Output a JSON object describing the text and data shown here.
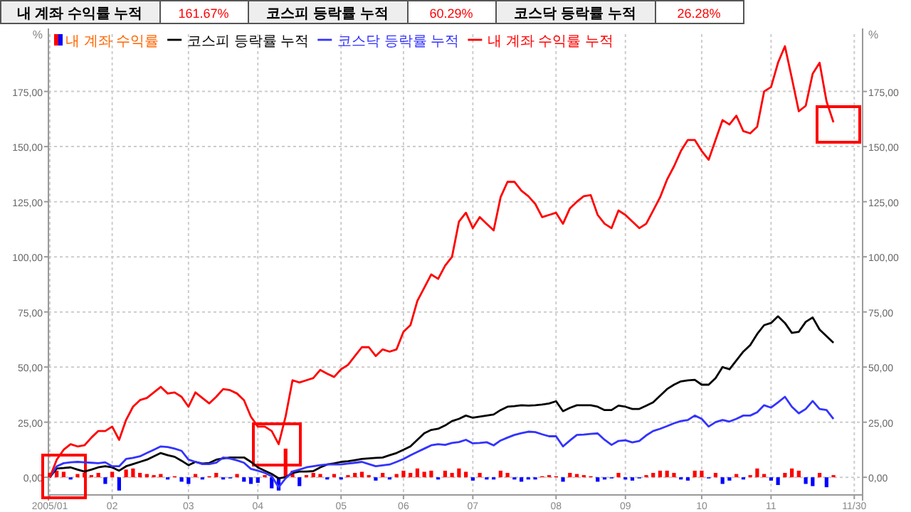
{
  "chart_data": {
    "type": "line",
    "annotations": [
      "내 계좌 수익률 누적",
      "161.67%",
      "코스피 등락률 누적",
      "60.29%",
      "코스닥 등락률 누적",
      "26.28%"
    ],
    "ylabel": "%",
    "y2label": "%",
    "categories": [
      "2005/01",
      null,
      null,
      null,
      null,
      null,
      null,
      null,
      null,
      "02",
      null,
      null,
      null,
      null,
      null,
      null,
      null,
      null,
      null,
      null,
      "03",
      null,
      null,
      null,
      null,
      null,
      null,
      null,
      null,
      null,
      "04",
      null,
      null,
      null,
      null,
      null,
      null,
      null,
      null,
      null,
      null,
      null,
      "05",
      null,
      null,
      null,
      null,
      null,
      null,
      null,
      null,
      "06",
      null,
      null,
      null,
      null,
      null,
      null,
      null,
      null,
      null,
      "07",
      null,
      null,
      null,
      null,
      null,
      null,
      null,
      null,
      null,
      null,
      null,
      "08",
      null,
      null,
      null,
      null,
      null,
      null,
      null,
      null,
      null,
      "09",
      null,
      null,
      null,
      null,
      null,
      null,
      null,
      null,
      null,
      null,
      "10",
      null,
      null,
      null,
      null,
      null,
      null,
      null,
      null,
      null,
      "11",
      null,
      null,
      null,
      null,
      null,
      null,
      null,
      null,
      null,
      null,
      null,
      "11/30",
      null
    ],
    "ylim": [
      -8,
      201
    ],
    "yticks": [
      {
        "value": 0,
        "label": "0,00"
      },
      {
        "value": 25,
        "label": "25,00"
      },
      {
        "value": 50,
        "label": "50,00"
      },
      {
        "value": 75,
        "label": "75,00"
      },
      {
        "value": 100,
        "label": "100,00"
      },
      {
        "value": 125,
        "label": "125,00"
      },
      {
        "value": 150,
        "label": "150,00"
      },
      {
        "value": 175,
        "label": "175,00"
      }
    ],
    "y2lim": [
      -8,
      201
    ],
    "y2ticks": [
      {
        "value": 0,
        "label": "0,00"
      },
      {
        "value": 25,
        "label": "25,00"
      },
      {
        "value": 50,
        "label": "50,00"
      },
      {
        "value": 75,
        "label": "75,00"
      },
      {
        "value": 100,
        "label": "100,00"
      },
      {
        "value": 125,
        "label": "125,00"
      },
      {
        "value": 150,
        "label": "150,00"
      },
      {
        "value": 175,
        "label": "175,00"
      }
    ],
    "grid": true,
    "legend": "top left",
    "series": [
      {
        "name": "내 계좌 수익률",
        "type": "bar",
        "color": "#ff6600",
        "values": [
          2,
          3,
          2.5,
          -1,
          1.5,
          2,
          1,
          2,
          -3,
          2.5,
          -6,
          3.5,
          4,
          2,
          1.5,
          1,
          1.5,
          -1,
          0.5,
          -2,
          -3,
          1.5,
          -1,
          0.5,
          2,
          -1,
          -0.5,
          1.5,
          -2,
          -3,
          -2.5,
          1,
          -5,
          -6,
          13,
          3,
          -4,
          1,
          2,
          1.5,
          -1,
          1.5,
          -1,
          1,
          2,
          2.5,
          1,
          -1.5,
          2,
          -1,
          1.5,
          3,
          2,
          4,
          2.5,
          3,
          -1,
          3,
          2,
          4,
          2.5,
          -1.5,
          2,
          -1,
          -1,
          3,
          2,
          -1,
          -2,
          -1,
          -1,
          0.5,
          1,
          0.5,
          -2,
          2,
          1.5,
          1,
          0.5,
          -2,
          -1,
          -0.5,
          2,
          -1,
          -1.5,
          -0.5,
          1,
          2,
          3,
          3,
          2,
          -1,
          -1.5,
          3,
          3,
          -0.5,
          2,
          -3,
          -1.5,
          1.5,
          -1,
          1,
          4,
          1.5,
          -1.5,
          -3.5,
          2,
          4,
          3,
          -3,
          -4,
          2,
          -4.5,
          1,
          null,
          null,
          null,
          null
        ],
        "colors": [
          "#ff0000",
          "#ff0000",
          "#ff0000",
          "#0000ff",
          "#ff0000",
          "#ff0000",
          "#ff0000",
          "#ff0000",
          "#0000ff",
          "#ff0000",
          "#0000ff",
          "#ff0000",
          "#ff0000",
          "#ff0000",
          "#ff0000",
          "#ff0000",
          "#ff0000",
          "#0000ff",
          "#ff0000",
          "#0000ff",
          "#0000ff",
          "#ff0000",
          "#0000ff",
          "#ff0000",
          "#ff0000",
          "#0000ff",
          "#0000ff",
          "#ff0000",
          "#0000ff",
          "#0000ff",
          "#0000ff",
          "#ff0000",
          "#0000ff",
          "#0000ff",
          "#ff0000",
          "#ff0000",
          "#0000ff",
          "#ff0000",
          "#ff0000",
          "#ff0000",
          "#0000ff",
          "#ff0000",
          "#0000ff",
          "#ff0000",
          "#ff0000",
          "#ff0000",
          "#ff0000",
          "#0000ff",
          "#ff0000",
          "#0000ff",
          "#ff0000",
          "#ff0000",
          "#ff0000",
          "#ff0000",
          "#ff0000",
          "#ff0000",
          "#0000ff",
          "#ff0000",
          "#ff0000",
          "#ff0000",
          "#ff0000",
          "#0000ff",
          "#ff0000",
          "#0000ff",
          "#0000ff",
          "#ff0000",
          "#ff0000",
          "#0000ff",
          "#0000ff",
          "#0000ff",
          "#0000ff",
          "#ff0000",
          "#ff0000",
          "#ff0000",
          "#0000ff",
          "#ff0000",
          "#ff0000",
          "#ff0000",
          "#ff0000",
          "#0000ff",
          "#0000ff",
          "#0000ff",
          "#ff0000",
          "#0000ff",
          "#0000ff",
          "#0000ff",
          "#ff0000",
          "#ff0000",
          "#ff0000",
          "#ff0000",
          "#ff0000",
          "#0000ff",
          "#0000ff",
          "#ff0000",
          "#ff0000",
          "#0000ff",
          "#ff0000",
          "#0000ff",
          "#0000ff",
          "#ff0000",
          "#0000ff",
          "#ff0000",
          "#ff0000",
          "#ff0000",
          "#0000ff",
          "#0000ff",
          "#ff0000",
          "#ff0000",
          "#ff0000",
          "#0000ff",
          "#0000ff",
          "#ff0000",
          "#0000ff",
          "#ff0000",
          null,
          null,
          null,
          null
        ]
      },
      {
        "name": "코스피 등락률 누적",
        "color": "#000000",
        "values": [
          0,
          4,
          4.2,
          4.5,
          3.5,
          2.6,
          3.5,
          4.5,
          5,
          4.5,
          3,
          5,
          6,
          7,
          8,
          9.5,
          11,
          10,
          9.3,
          7.5,
          5.5,
          7,
          6.2,
          6.5,
          8,
          8.6,
          9,
          9,
          9,
          7,
          4.5,
          3,
          1.5,
          -0.5,
          0,
          2,
          2.6,
          2.6,
          2.8,
          4.5,
          5.8,
          6.3,
          7,
          7.3,
          7.8,
          8.3,
          8.6,
          8.8,
          9,
          10,
          11,
          12.5,
          14,
          17,
          20,
          21.5,
          22,
          23.5,
          25.5,
          26.5,
          28,
          27,
          27.5,
          28,
          28.5,
          30.5,
          32,
          32.3,
          32.7,
          32.5,
          32.7,
          33,
          33.5,
          34.5,
          30,
          31.5,
          32.7,
          32.7,
          32.7,
          32,
          30.5,
          30.5,
          32.5,
          32,
          31,
          31,
          32.5,
          34,
          37,
          40,
          42,
          43.5,
          44,
          44.2,
          42,
          42,
          45,
          50,
          49,
          53,
          57,
          60,
          65,
          69,
          70,
          73,
          70,
          65.5,
          66,
          70.5,
          72.5,
          67,
          64,
          61,
          null,
          null,
          null,
          null
        ]
      },
      {
        "name": "코스닥 등락률 누적",
        "color": "#3333ff",
        "values": [
          0,
          5,
          6.4,
          6.8,
          7,
          6.8,
          6.6,
          6.4,
          6.8,
          5,
          5,
          8.3,
          8.8,
          9.5,
          11,
          12.5,
          14,
          13.7,
          13,
          12,
          8,
          7,
          6,
          6,
          6.6,
          9,
          8.5,
          7.7,
          6.6,
          3.8,
          3,
          2,
          0.5,
          -4.5,
          -0.5,
          2.6,
          3.5,
          4.5,
          5,
          5.5,
          5.8,
          5.8,
          5.8,
          6.2,
          6.6,
          7,
          6,
          5,
          5.4,
          5.8,
          7,
          8.3,
          10,
          11.5,
          13,
          14.5,
          15,
          14.7,
          15.6,
          16,
          17,
          15.4,
          15.6,
          15.9,
          14.5,
          16.7,
          18,
          19.2,
          20,
          20.7,
          20.5,
          19.5,
          18.6,
          18.6,
          14,
          16.7,
          19.2,
          19.4,
          19.7,
          19.9,
          17,
          14.7,
          16.5,
          16.8,
          15.8,
          16.5,
          19,
          21,
          22,
          23.2,
          24.5,
          25.5,
          26,
          28,
          26.5,
          23,
          25,
          26,
          25.3,
          26.5,
          28,
          28,
          29.5,
          32.7,
          31.6,
          34,
          36.5,
          32,
          29,
          31,
          34.6,
          31,
          30.5,
          26.5,
          null,
          null,
          null,
          null
        ]
      },
      {
        "name": "내 계좌 수익률 누적",
        "color": "#ff0000",
        "values": [
          0,
          8,
          12.5,
          15,
          14,
          14.5,
          18,
          21,
          21,
          23,
          17,
          26,
          32,
          35,
          36,
          38.5,
          41,
          38,
          38.5,
          36.5,
          32,
          38.5,
          36,
          33.5,
          36.5,
          40,
          39.5,
          38,
          35,
          27.5,
          23,
          23,
          21,
          15,
          27.5,
          44,
          43,
          44,
          45,
          48.7,
          47,
          45.5,
          49,
          51,
          55,
          59,
          59,
          55,
          58,
          57,
          58,
          66,
          69,
          80,
          86,
          92,
          90,
          96,
          100,
          116,
          120,
          113,
          118,
          115,
          112,
          127,
          134,
          134,
          130,
          127.5,
          124,
          118,
          119,
          120,
          115,
          122,
          125,
          127.5,
          128,
          119,
          115,
          113,
          121,
          119,
          116,
          113,
          115,
          121,
          127,
          135,
          141,
          148,
          153,
          153,
          148,
          144,
          153,
          162,
          160,
          164,
          157,
          156,
          159,
          175,
          177,
          188,
          195.5,
          181,
          166,
          168.5,
          183,
          188,
          170.5,
          161,
          null,
          null,
          null,
          null
        ]
      }
    ]
  }
}
